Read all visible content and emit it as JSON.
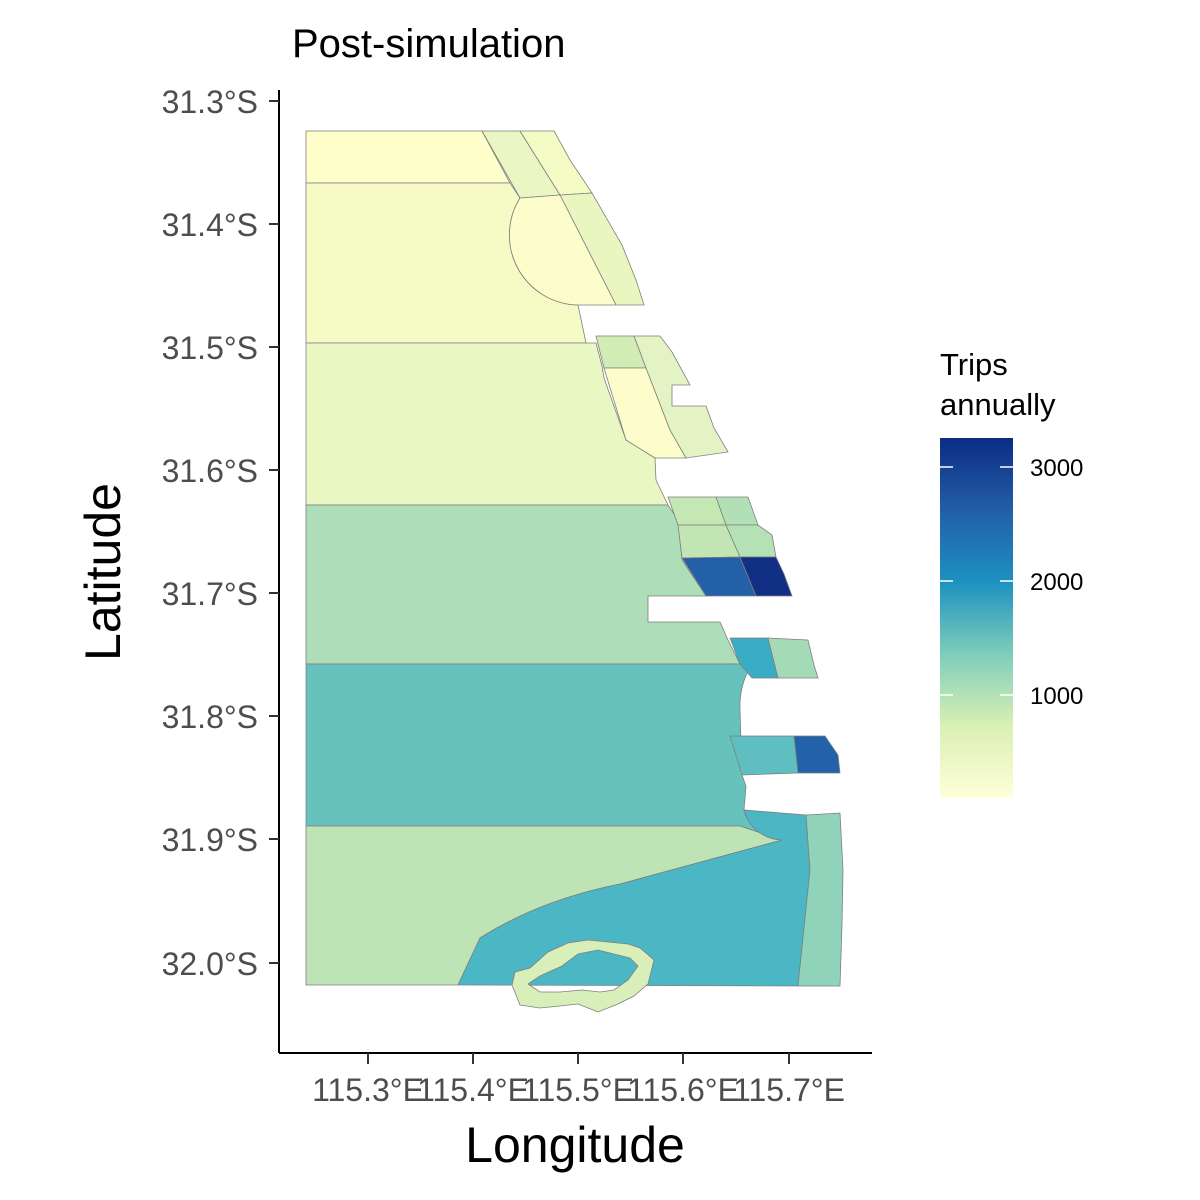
{
  "title": "Post-simulation",
  "x_axis": {
    "label": "Longitude",
    "ticks": [
      "115.3°E",
      "115.4°E",
      "115.5°E",
      "115.6°E",
      "115.7°E"
    ]
  },
  "y_axis": {
    "label": "Latitude",
    "ticks": [
      "31.3°S",
      "31.4°S",
      "31.5°S",
      "31.6°S",
      "31.7°S",
      "31.8°S",
      "31.9°S",
      "32.0°S"
    ]
  },
  "legend": {
    "title_line1": "Trips",
    "title_line2": "annually",
    "ticks": [
      "3000",
      "2000",
      "1000"
    ],
    "palette": "YlGnBu",
    "color_low": "#ffffd9",
    "color_mid": "#1d91c0",
    "color_high": "#0c2c84"
  },
  "chart_data": {
    "type": "choropleth",
    "title": "Post-simulation",
    "xlabel": "Longitude",
    "ylabel": "Latitude",
    "xlim": [
      115.215,
      115.775
    ],
    "ylim": [
      -32.07,
      -31.29
    ],
    "legend_title": "Trips annually",
    "value_range": [
      100,
      3250
    ],
    "zones": [
      {
        "id": "offshore-north",
        "approx_lat": -31.35,
        "value": 200
      },
      {
        "id": "offshore-31.4",
        "approx_lat": -31.43,
        "value": 350
      },
      {
        "id": "offshore-31.56",
        "approx_lat": -31.56,
        "value": 450
      },
      {
        "id": "offshore-31.69",
        "approx_lat": -31.69,
        "value": 1000
      },
      {
        "id": "offshore-31.82",
        "approx_lat": -31.82,
        "value": 1500
      },
      {
        "id": "offshore-south",
        "approx_lat": -31.97,
        "value": 800
      },
      {
        "id": "cockburn-sound",
        "approx_lat": -31.97,
        "value": 1750
      },
      {
        "id": "south-nearshore-strip",
        "approx_lat": -31.95,
        "value": 1150
      },
      {
        "id": "rottnest-island",
        "approx_lat": -32.01,
        "value": 400
      },
      {
        "id": "north-coastal-a",
        "approx_lat": -31.35,
        "value": 350
      },
      {
        "id": "north-coastal-b",
        "approx_lat": -31.35,
        "value": 250
      },
      {
        "id": "north-coastal-c",
        "approx_lat": -31.44,
        "value": 400
      },
      {
        "id": "north-bay",
        "approx_lat": -31.43,
        "value": 150
      },
      {
        "id": "mid-coastal-a",
        "approx_lat": -31.5,
        "value": 650
      },
      {
        "id": "mid-coastal-b",
        "approx_lat": -31.55,
        "value": 150
      },
      {
        "id": "mid-coastal-c",
        "approx_lat": -31.55,
        "value": 450
      },
      {
        "id": "hillarys-a",
        "approx_lat": -31.64,
        "value": 900
      },
      {
        "id": "hillarys-b",
        "approx_lat": -31.64,
        "value": 900
      },
      {
        "id": "hillarys-c",
        "approx_lat": -31.66,
        "value": 800
      },
      {
        "id": "hillarys-d",
        "approx_lat": -31.66,
        "value": 800
      },
      {
        "id": "hillarys-e",
        "approx_lat": -31.69,
        "value": 2800
      },
      {
        "id": "hillarys-f",
        "approx_lat": -31.69,
        "value": 3250
      },
      {
        "id": "scarborough-a",
        "approx_lat": -31.75,
        "value": 1900
      },
      {
        "id": "scarborough-b",
        "approx_lat": -31.75,
        "value": 1100
      },
      {
        "id": "cottesloe-a",
        "approx_lat": -31.84,
        "value": 1500
      },
      {
        "id": "cottesloe-b",
        "approx_lat": -31.84,
        "value": 2600
      }
    ]
  }
}
